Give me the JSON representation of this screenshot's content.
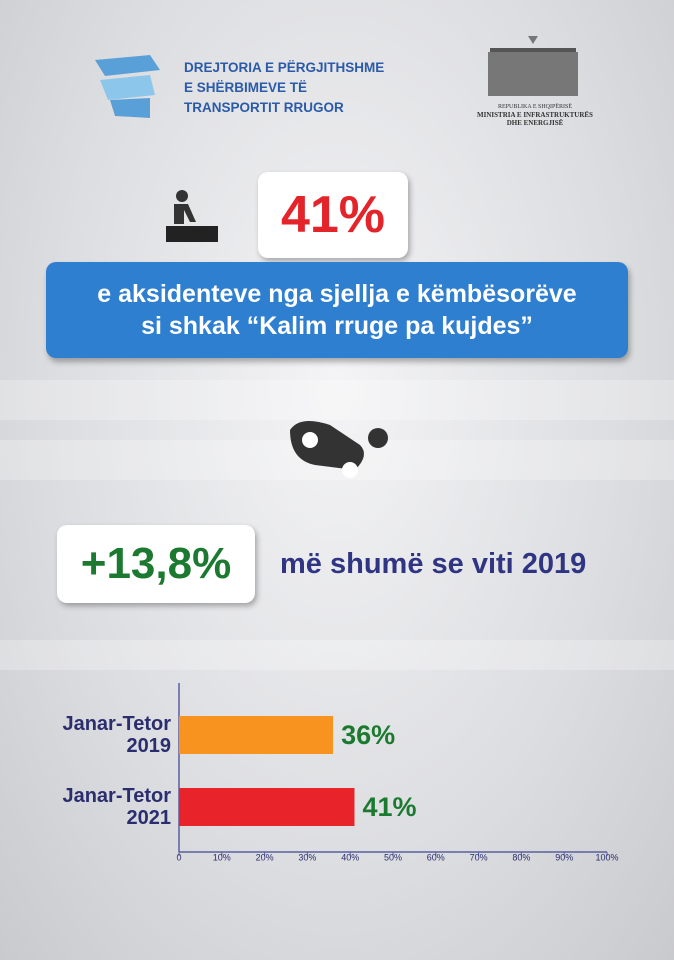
{
  "header": {
    "agency_lines": [
      "DREJTORIA E PËRGJITHSHME",
      "E SHËRBIMEVE TË",
      "TRANSPORTIT RRUGOR"
    ],
    "ministry_lines": [
      "REPUBLIKA E SHQIPËRISË",
      "MINISTRIA E INFRASTRUKTURËS",
      "DHE ENERGJISË"
    ]
  },
  "stat_main": {
    "value": "41%",
    "description_lines": [
      "e aksidenteve nga sjellja e këmbësorëve",
      "si shkak “Kalim rruge pa kujdes”"
    ]
  },
  "stat_change": {
    "value": "+13,8%",
    "text": "më shumë se viti 2019"
  },
  "chart_data": {
    "type": "bar",
    "orientation": "horizontal",
    "categories": [
      "Janar-Tetor 2019",
      "Janar-Tetor 2021"
    ],
    "values": [
      36,
      41
    ],
    "value_labels": [
      "36%",
      "41%"
    ],
    "colors": [
      "#f7931e",
      "#e8232a"
    ],
    "xlim": [
      0,
      100
    ],
    "xticks": [
      0,
      {
        "value": 10,
        "label": "10%"
      },
      {
        "value": 20,
        "label": "20%"
      },
      {
        "value": 30,
        "label": "30%"
      },
      {
        "value": 40,
        "label": "40%"
      },
      {
        "value": 50,
        "label": "50%"
      },
      {
        "value": 60,
        "label": "60%"
      },
      {
        "value": 70,
        "label": "70%"
      },
      {
        "value": 80,
        "label": "80%"
      },
      {
        "value": 90,
        "label": "90%"
      },
      {
        "value": 100,
        "label": "100%"
      }
    ]
  }
}
